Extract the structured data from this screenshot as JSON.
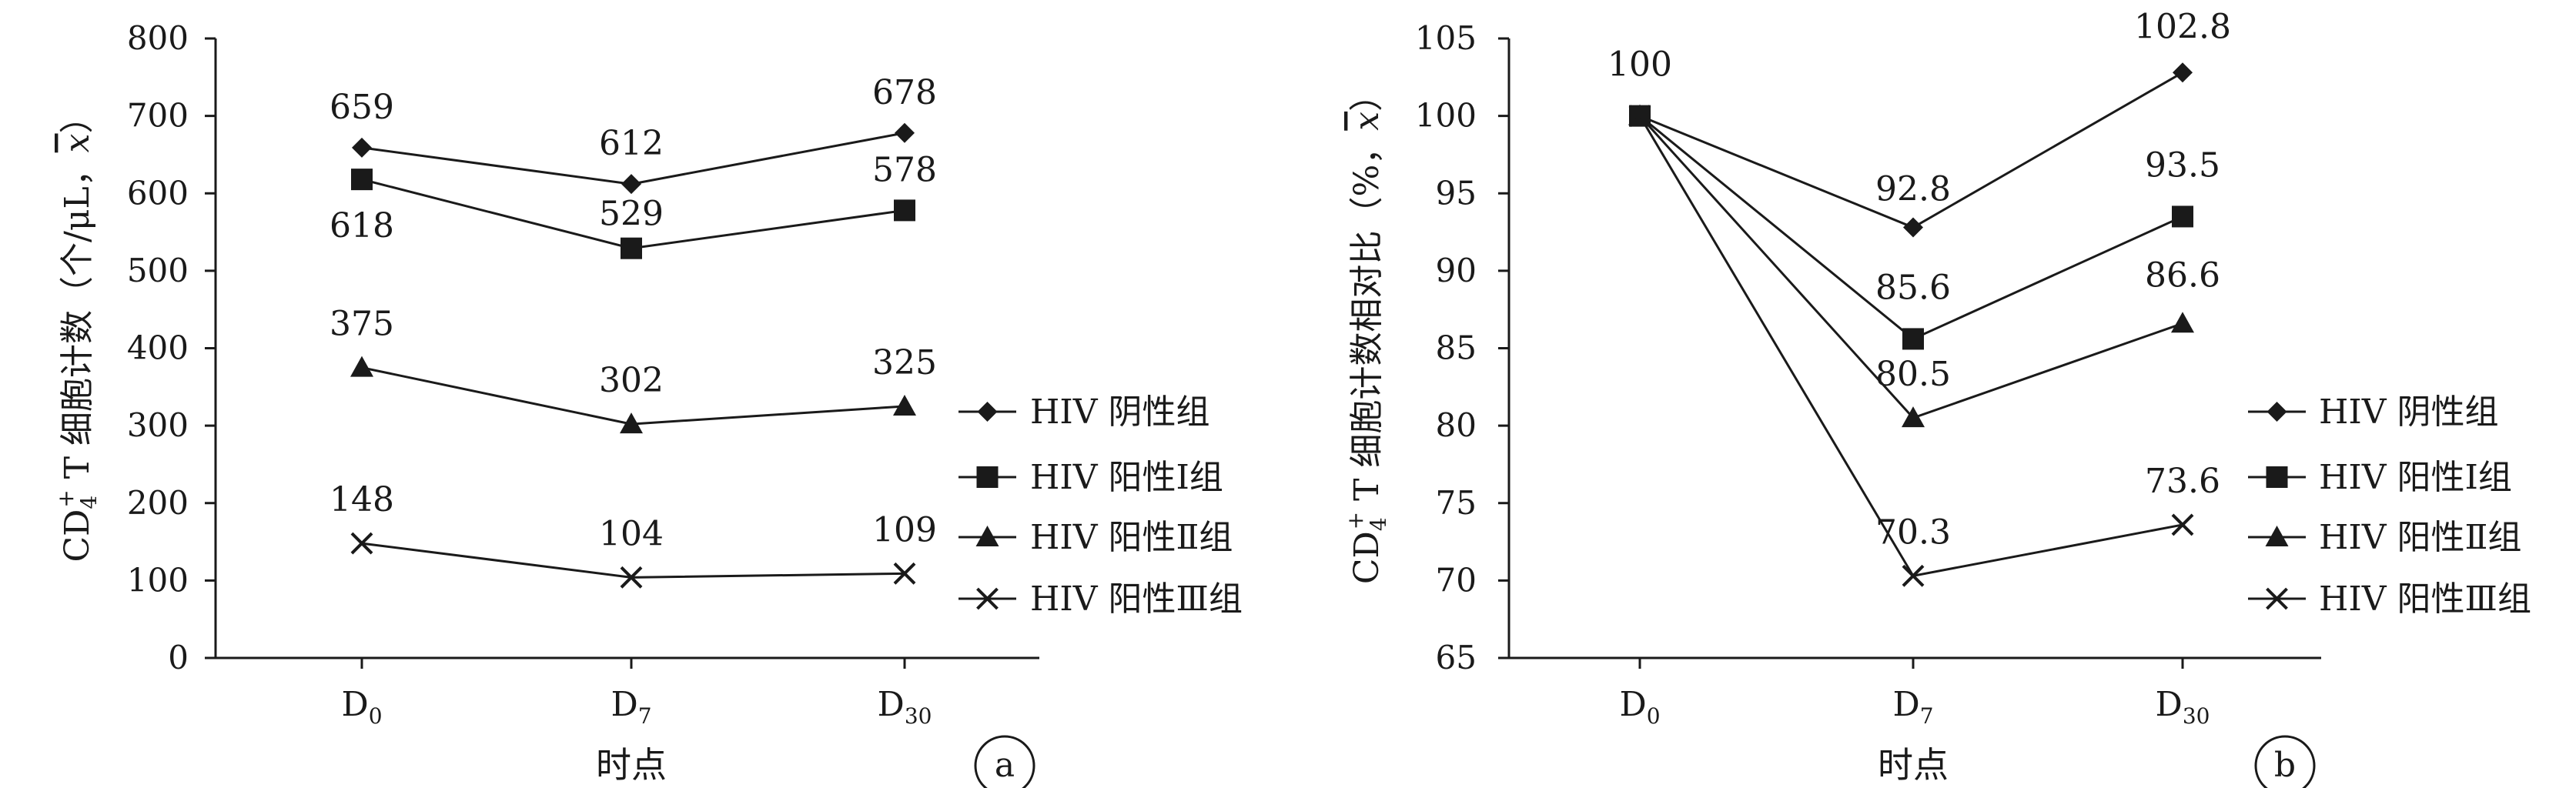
{
  "chart_data": [
    {
      "type": "line",
      "panel_label": "a",
      "categories": [
        "D0",
        "D7",
        "D30"
      ],
      "category_labels": [
        {
          "base": "D",
          "sub": "0"
        },
        {
          "base": "D",
          "sub": "7"
        },
        {
          "base": "D",
          "sub": "30"
        }
      ],
      "xlabel": "时点",
      "ylabel": {
        "pre": "CD",
        "sub": "4",
        "sup": "+",
        "post": " T 细胞计数（个/μL，",
        "xbar": "x",
        "end": "）"
      },
      "ylim": [
        0,
        800
      ],
      "yticks": [
        0,
        100,
        200,
        300,
        400,
        500,
        600,
        700,
        800
      ],
      "series": [
        {
          "name": "HIV 阴性组",
          "marker": "diamond",
          "values": [
            659,
            612,
            678
          ],
          "data_labels": [
            "659",
            "612",
            "678"
          ]
        },
        {
          "name": "HIV 阳性Ⅰ组",
          "marker": "square",
          "values": [
            618,
            529,
            578
          ],
          "data_labels": [
            "618",
            "529",
            "578"
          ]
        },
        {
          "name": "HIV 阳性Ⅱ组",
          "marker": "triangle",
          "values": [
            375,
            302,
            325
          ],
          "data_labels": [
            "375",
            "302",
            "325"
          ]
        },
        {
          "name": "HIV 阳性Ⅲ组",
          "marker": "cross",
          "values": [
            148,
            104,
            109
          ],
          "data_labels": [
            "148",
            "104",
            "109"
          ]
        }
      ]
    },
    {
      "type": "line",
      "panel_label": "b",
      "categories": [
        "D0",
        "D7",
        "D30"
      ],
      "category_labels": [
        {
          "base": "D",
          "sub": "0"
        },
        {
          "base": "D",
          "sub": "7"
        },
        {
          "base": "D",
          "sub": "30"
        }
      ],
      "xlabel": "时点",
      "ylabel": {
        "pre": "CD",
        "sub": "4",
        "sup": "+",
        "post": " T 细胞计数相对比（%，",
        "xbar": "x",
        "end": "）"
      },
      "ylim": [
        65,
        105
      ],
      "yticks": [
        65,
        70,
        75,
        80,
        85,
        90,
        95,
        100,
        105
      ],
      "series": [
        {
          "name": "HIV 阴性组",
          "marker": "diamond",
          "values": [
            100,
            92.8,
            102.8
          ],
          "data_labels": [
            "100",
            "92.8",
            "102.8"
          ]
        },
        {
          "name": "HIV 阳性Ⅰ组",
          "marker": "square",
          "values": [
            100,
            85.6,
            93.5
          ],
          "data_labels": [
            "",
            "85.6",
            "93.5"
          ]
        },
        {
          "name": "HIV 阳性Ⅱ组",
          "marker": "triangle",
          "values": [
            100,
            80.5,
            86.6
          ],
          "data_labels": [
            "",
            "80.5",
            "86.6"
          ]
        },
        {
          "name": "HIV 阳性Ⅲ组",
          "marker": "cross",
          "values": [
            100,
            70.3,
            73.6
          ],
          "data_labels": [
            "",
            "70.3",
            "73.6"
          ]
        }
      ]
    }
  ]
}
